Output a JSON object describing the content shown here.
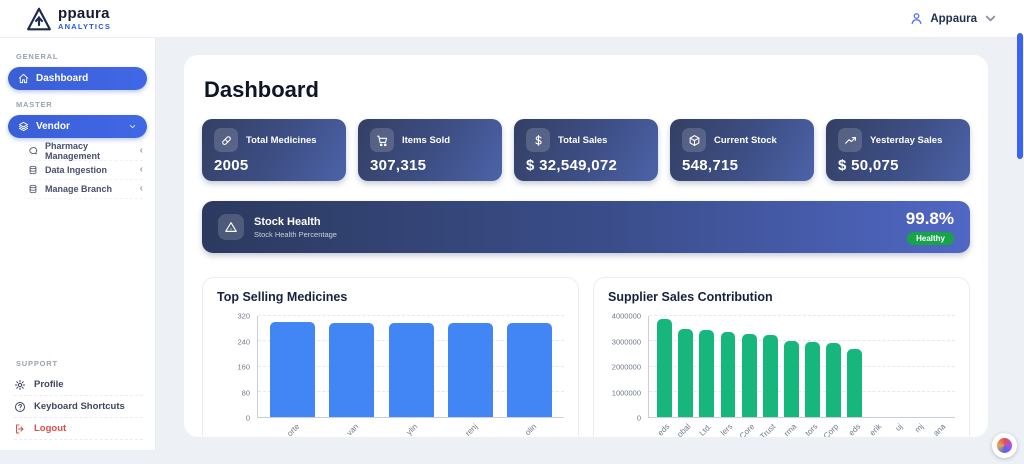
{
  "app": {
    "brand": "ppaura",
    "brand_sub": "ANALYTICS",
    "user_name": "Appaura"
  },
  "sidebar": {
    "sections": [
      {
        "label": "GENERAL",
        "items": [
          {
            "label": "Dashboard",
            "icon": "home-icon",
            "active": true
          }
        ]
      },
      {
        "label": "MASTER",
        "items": [
          {
            "label": "Vendor",
            "icon": "layers-icon",
            "active": true,
            "chevron": "down",
            "children": [
              {
                "label": "Pharmacy Management",
                "icon": "chat-bubble-icon"
              },
              {
                "label": "Data Ingestion",
                "icon": "database-icon"
              },
              {
                "label": "Manage Branch",
                "icon": "database-icon"
              }
            ]
          }
        ]
      },
      {
        "label": "SUPPORT",
        "items": [
          {
            "label": "Profile",
            "icon": "gear-icon"
          },
          {
            "label": "Keyboard Shortcuts",
            "icon": "help-circle-icon"
          },
          {
            "label": "Logout",
            "icon": "logout-icon",
            "danger": true
          }
        ]
      }
    ]
  },
  "main": {
    "title": "Dashboard",
    "stat_cards": [
      {
        "label": "Total Medicines",
        "value": "2005",
        "icon": "pill-icon"
      },
      {
        "label": "Items Sold",
        "value": "307,315",
        "icon": "cart-icon"
      },
      {
        "label": "Total Sales",
        "value": "$ 32,549,072",
        "icon": "dollar-icon"
      },
      {
        "label": "Current Stock",
        "value": "548,715",
        "icon": "package-icon"
      },
      {
        "label": "Yesterday Sales",
        "value": "$ 50,075",
        "icon": "trend-up-icon"
      }
    ],
    "stock_health": {
      "title": "Stock Health",
      "subtitle": "Stock Health Percentage",
      "value": "99.8%",
      "badge": "Healthy",
      "icon": "warning-triangle-icon"
    }
  },
  "chart_data": [
    {
      "type": "bar",
      "title": "Top Selling Medicines",
      "categories": [
        "orte",
        "van",
        "ylin",
        "renj",
        "olin"
      ],
      "categories_note": "labels rotated -45deg and clipped by panel edge in screenshot",
      "values": [
        300,
        298,
        298,
        297,
        297
      ],
      "ylim": [
        0,
        320
      ],
      "yticks": [
        0,
        80,
        160,
        240,
        320
      ],
      "ytick_labels": [
        "0",
        "80",
        "160",
        "240",
        "320"
      ],
      "bar_color": "#4286f5",
      "bar_width_pct": 76,
      "grid": true,
      "legend": false
    },
    {
      "type": "bar",
      "title": "Supplier Sales Contribution",
      "categories": [
        "eds",
        "obal",
        "Ltd.",
        "lers",
        "Core",
        "Trust",
        "rma",
        "tors",
        "Corp",
        "eds",
        "erik",
        "uj",
        "mj",
        "ana"
      ],
      "categories_note": "labels rotated -45deg and clipped by panel edge in screenshot",
      "values": [
        3900000,
        3470000,
        3450000,
        3360000,
        3280000,
        3260000,
        3020000,
        2960000,
        2930000,
        2680000,
        0,
        0,
        0,
        0
      ],
      "ylim": [
        0,
        4000000
      ],
      "yticks": [
        0,
        1000000,
        2000000,
        3000000,
        4000000
      ],
      "ytick_labels": [
        "0",
        "1000000",
        "2000000",
        "3000000",
        "4000000"
      ],
      "bar_color": "#17b67c",
      "bar_width_pct": 70,
      "grid": true,
      "legend": false
    }
  ],
  "colors": {
    "accent": "#3d63da",
    "card_gradient": [
      "#333f63",
      "#4c63a9"
    ],
    "banner_gradient": [
      "#2c3a5f",
      "#5067c4"
    ],
    "healthy_green": "#16a34a",
    "blue_bar": "#4286f5",
    "green_bar": "#17b67c",
    "logout_red": "#e14b4b",
    "scrollbar": "#3b63f0"
  }
}
